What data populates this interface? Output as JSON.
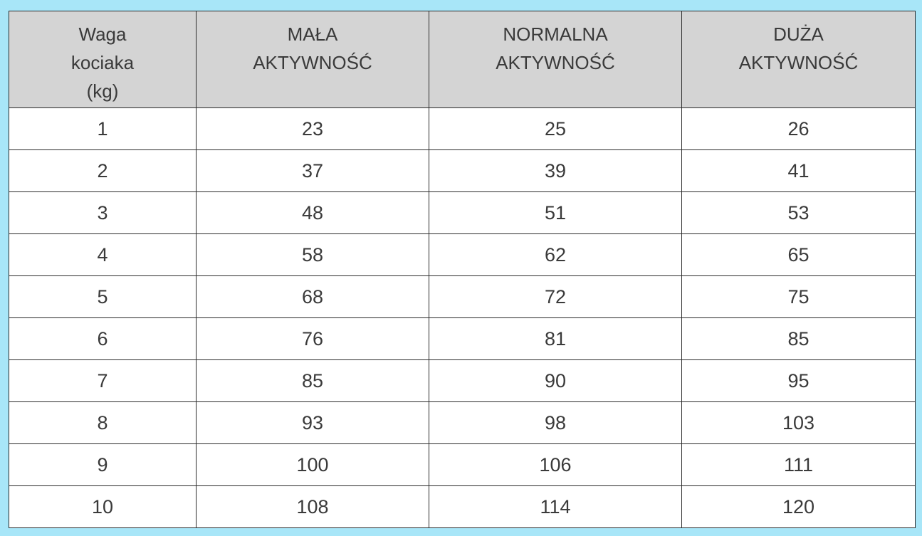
{
  "table": {
    "headers": [
      [
        "Waga",
        "kociaka",
        "(kg)"
      ],
      [
        "MAŁA",
        "AKTYWNOŚĆ"
      ],
      [
        "NORMALNA",
        "AKTYWNOŚĆ"
      ],
      [
        "DUŻA",
        "AKTYWNOŚĆ"
      ]
    ],
    "rows": [
      [
        "1",
        "23",
        "25",
        "26"
      ],
      [
        "2",
        "37",
        "39",
        "41"
      ],
      [
        "3",
        "48",
        "51",
        "53"
      ],
      [
        "4",
        "58",
        "62",
        "65"
      ],
      [
        "5",
        "68",
        "72",
        "75"
      ],
      [
        "6",
        "76",
        "81",
        "85"
      ],
      [
        "7",
        "85",
        "90",
        "95"
      ],
      [
        "8",
        "93",
        "98",
        "103"
      ],
      [
        "9",
        "100",
        "106",
        "111"
      ],
      [
        "10",
        "108",
        "114",
        "120"
      ]
    ]
  }
}
